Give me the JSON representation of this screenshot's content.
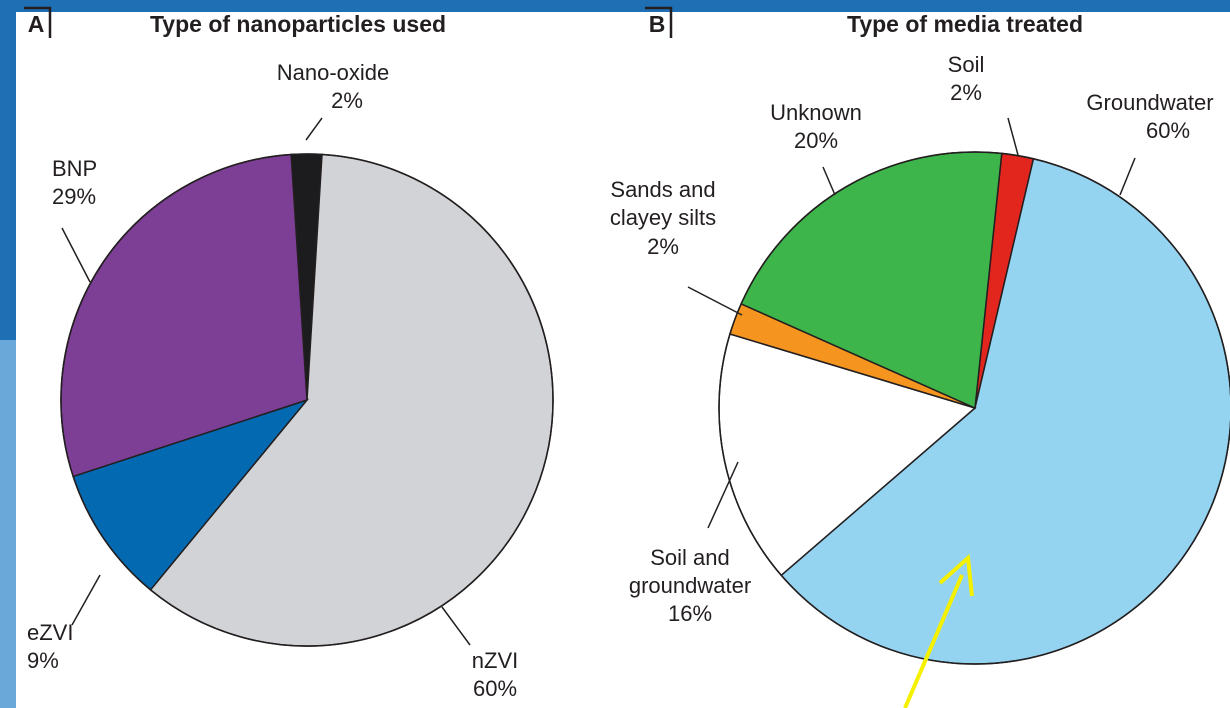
{
  "chart_data": [
    {
      "type": "pie",
      "panel": "A",
      "title": "Type of nanoparticles used",
      "categories": [
        "Nano-oxide",
        "nZVI",
        "eZVI",
        "BNP"
      ],
      "values": [
        2,
        60,
        9,
        29
      ],
      "value_labels": [
        "2%",
        "60%",
        "9%",
        "29%"
      ],
      "colors": [
        "#1c1c1e",
        "#d2d3d6",
        "#0369b1",
        "#7d3f96"
      ]
    },
    {
      "type": "pie",
      "panel": "B",
      "title": "Type of media treated",
      "categories": [
        "Soil",
        "Groundwater",
        "Soil and\ngroundwater",
        "Sands and\nclayey silts",
        "Unknown"
      ],
      "values": [
        2,
        60,
        16,
        2,
        20
      ],
      "value_labels": [
        "2%",
        "60%",
        "16%",
        "2%",
        "20%"
      ],
      "colors": [
        "#e3261d",
        "#95d4f0",
        "#ffffff",
        "#f5951f",
        "#3db54b"
      ]
    }
  ]
}
